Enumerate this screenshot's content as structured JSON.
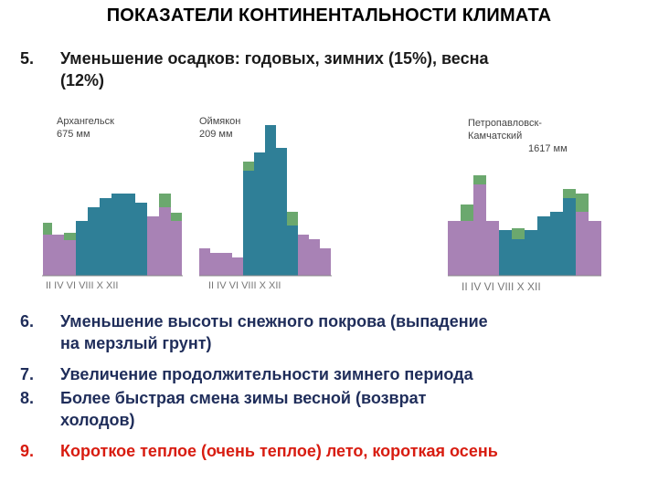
{
  "title": "ПОКАЗАТЕЛИ КОНТИНЕНТАЛЬНОСТИ КЛИМАТА",
  "items": [
    {
      "num": "5.",
      "lines": [
        "Уменьшение осадков: годовых, зимних (15%), весна",
        "(12%)"
      ],
      "color": "#1a1a1a"
    },
    {
      "num": "6.",
      "lines": [
        "Уменьшение высоты снежного покрова (выпадение",
        "на мерзлый грунт)"
      ],
      "color": "#1f2d5a"
    },
    {
      "num": "7.",
      "lines": [
        "Увеличение продолжительности зимнего периода"
      ],
      "color": "#1f2d5a"
    },
    {
      "num": "8.",
      "lines": [
        "Более быстрая смена зимы весной (возврат",
        "холодов)"
      ],
      "color": "#1f2d5a"
    },
    {
      "num": "9.",
      "lines": [
        "Короткое теплое (очень теплое) лето, короткая  осень"
      ],
      "color": "#d81c10"
    }
  ],
  "climatograms": [
    {
      "station": "Архангельск",
      "station_lines": [
        "Архангельск"
      ],
      "total": "675 мм",
      "axis": "II  IV  VI VIII  X   XII"
    },
    {
      "station": "Оймякон",
      "station_lines": [
        "Оймякон"
      ],
      "total": "209 мм",
      "axis": "II  IV  VI VIII  X  XII"
    },
    {
      "station": "Петропавловск-Камчатский",
      "station_lines": [
        "Петропавловск-",
        "Камчатский"
      ],
      "total": "1617 мм",
      "axis": "II  IV  VI VIII  X  XII"
    }
  ],
  "colors": {
    "precip_blue": "#2f7f97",
    "precip_purple": "#a882b5",
    "precip_green": "#6ba86e",
    "axis_gray": "#888888"
  }
}
